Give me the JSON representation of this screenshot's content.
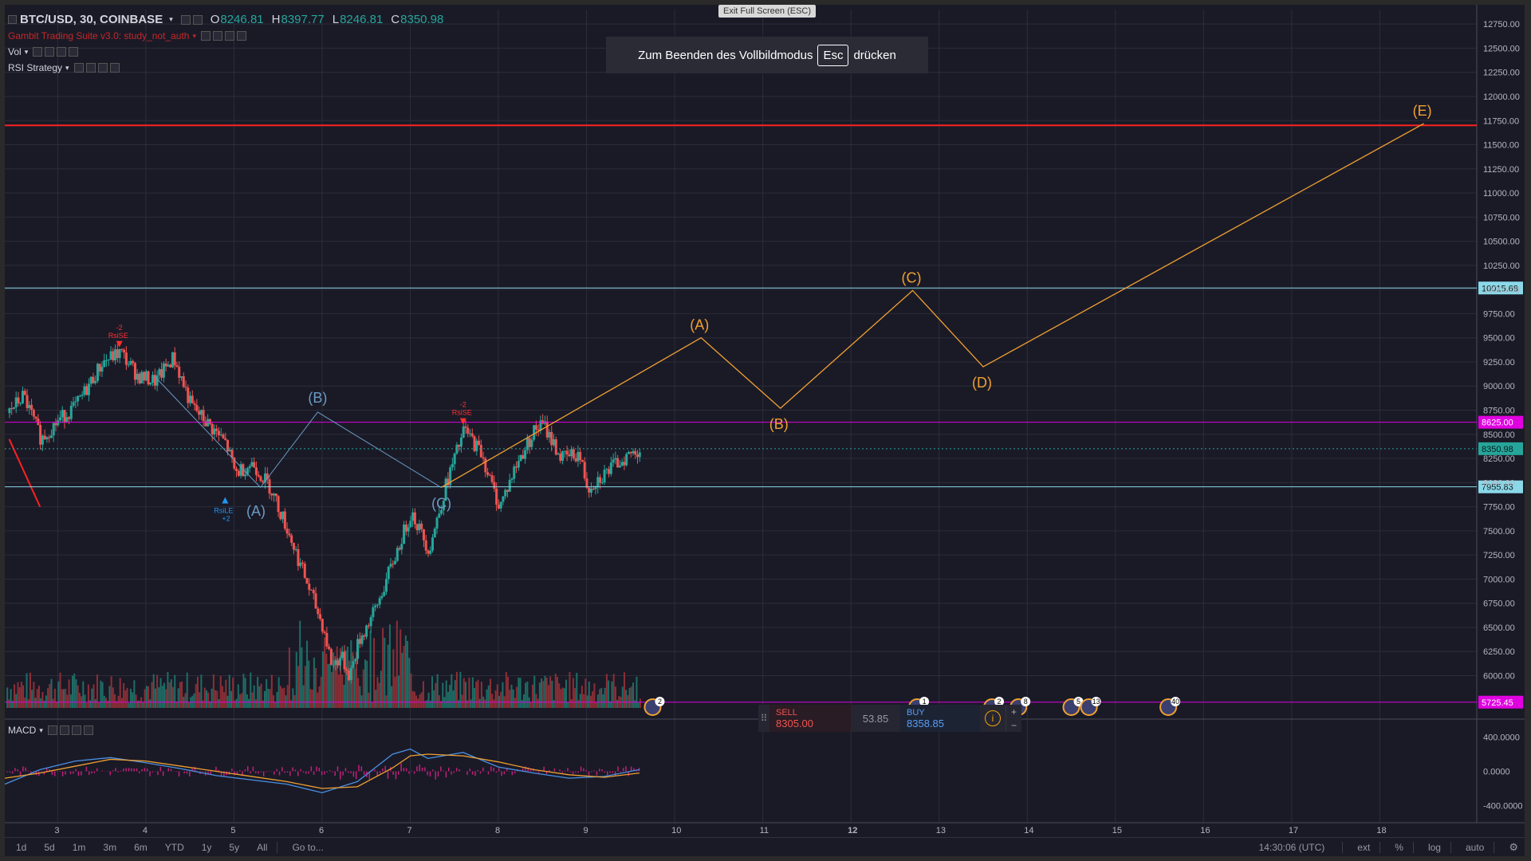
{
  "header": {
    "symbol": "BTC/USD, 30, COINBASE",
    "open_k": "O",
    "open": "8246.81",
    "high_k": "H",
    "high": "8397.77",
    "low_k": "L",
    "low": "8246.81",
    "close_k": "C",
    "close": "8350.98",
    "study1": "Gambit Trading Suite v3.0: study_not_auth",
    "study2": "Vol",
    "study3": "RSI Strategy"
  },
  "tooltip": "Exit Full Screen (ESC)",
  "fullscreen_banner": {
    "before": "Zum Beenden des Vollbildmodus",
    "key": "Esc",
    "after": "drücken"
  },
  "macd_label": "MACD",
  "trade_panel": {
    "sell_label": "SELL",
    "sell_price": "8305.00",
    "spread": "53.85",
    "buy_label": "BUY",
    "buy_price": "8358.85",
    "info": "i",
    "plus": "+",
    "minus": "−"
  },
  "bottom_bar": {
    "ranges": [
      "1d",
      "5d",
      "1m",
      "3m",
      "6m",
      "YTD",
      "1y",
      "5y",
      "All"
    ],
    "goto": "Go to...",
    "time": "14:30:06 (UTC)",
    "toggles": [
      "ext",
      "%",
      "log",
      "auto"
    ]
  },
  "colors": {
    "bg": "#1a1a27",
    "grid": "#2c2c3a",
    "up": "#26a69a",
    "down": "#ef5350",
    "wave_orange": "#f0a030",
    "wave_blue": "#6b9bc3",
    "red_line": "#ff2020",
    "magenta": "#e000e0",
    "cyan": "#8ad8e8"
  },
  "chart_data": [
    {
      "type": "candlestick",
      "title": "BTC/USD, 30, COINBASE",
      "x_ticks": [
        "3",
        "4",
        "5",
        "6",
        "7",
        "8",
        "9",
        "10",
        "11",
        "12",
        "13",
        "14",
        "15",
        "16",
        "17",
        "18"
      ],
      "y_ticks": [
        "12750.00",
        "12500.00",
        "12250.00",
        "12000.00",
        "11750.00",
        "11500.00",
        "11250.00",
        "11000.00",
        "10750.00",
        "10500.00",
        "10250.00",
        "10000.00",
        "9750.00",
        "9500.00",
        "9250.00",
        "9000.00",
        "8750.00",
        "8500.00",
        "8250.00",
        "8000.00",
        "7750.00",
        "7500.00",
        "7250.00",
        "7000.00",
        "6750.00",
        "6500.00",
        "6250.00",
        "6000.00"
      ],
      "ylim": [
        5550,
        12900
      ],
      "xlim": [
        2.4,
        19.1
      ],
      "price_path": [
        [
          2.4,
          8700
        ],
        [
          2.6,
          8900
        ],
        [
          2.8,
          8450
        ],
        [
          3.0,
          8650
        ],
        [
          3.2,
          8800
        ],
        [
          3.5,
          9250
        ],
        [
          3.7,
          9350
        ],
        [
          3.9,
          9100
        ],
        [
          4.1,
          9050
        ],
        [
          4.3,
          9300
        ],
        [
          4.5,
          8800
        ],
        [
          4.7,
          8600
        ],
        [
          4.9,
          8400
        ],
        [
          5.0,
          8100
        ],
        [
          5.2,
          8200
        ],
        [
          5.4,
          7950
        ],
        [
          5.6,
          7500
        ],
        [
          5.8,
          7000
        ],
        [
          6.0,
          6500
        ],
        [
          6.1,
          6100
        ],
        [
          6.2,
          6200
        ],
        [
          6.3,
          6000
        ],
        [
          6.4,
          6350
        ],
        [
          6.6,
          6700
        ],
        [
          6.8,
          7200
        ],
        [
          7.0,
          7700
        ],
        [
          7.2,
          7300
        ],
        [
          7.4,
          8000
        ],
        [
          7.6,
          8550
        ],
        [
          7.8,
          8300
        ],
        [
          7.9,
          8000
        ],
        [
          8.0,
          7750
        ],
        [
          8.2,
          8200
        ],
        [
          8.4,
          8550
        ],
        [
          8.5,
          8600
        ],
        [
          8.7,
          8250
        ],
        [
          8.9,
          8300
        ],
        [
          9.0,
          7950
        ],
        [
          9.2,
          8100
        ],
        [
          9.4,
          8250
        ],
        [
          9.6,
          8350
        ]
      ],
      "horizontal_levels": [
        {
          "value": 11700,
          "color": "red"
        },
        {
          "value": 10015.68,
          "label": "10015.68",
          "color": "cyan"
        },
        {
          "value": 8625.0,
          "label": "8625.00",
          "color": "magenta"
        },
        {
          "value": 8350.98,
          "label": "8350.98",
          "color": "green"
        },
        {
          "value": 7955.83,
          "label": "7955.83",
          "color": "cyan"
        },
        {
          "value": 5725.45,
          "label": "5725.45",
          "color": "magenta"
        }
      ],
      "wave_labels_blue": [
        {
          "label": "(A)",
          "x": 5.25,
          "y": 7870
        },
        {
          "label": "(B)",
          "x": 5.95,
          "y": 8730
        },
        {
          "label": "(C)",
          "x": 7.35,
          "y": 7950
        }
      ],
      "wave_path_blue": [
        [
          4.1,
          9100
        ],
        [
          5.3,
          7950
        ],
        [
          5.95,
          8730
        ],
        [
          7.35,
          7950
        ]
      ],
      "wave_labels_orange": [
        {
          "label": "(A)",
          "x": 10.3,
          "y": 9500
        },
        {
          "label": "(B)",
          "x": 11.2,
          "y": 8770
        },
        {
          "label": "(C)",
          "x": 12.7,
          "y": 9990
        },
        {
          "label": "(D)",
          "x": 13.5,
          "y": 9200
        },
        {
          "label": "(E)",
          "x": 18.5,
          "y": 11720
        }
      ],
      "wave_path_orange": [
        [
          7.35,
          7950
        ],
        [
          10.3,
          9500
        ],
        [
          11.2,
          8770
        ],
        [
          12.7,
          9990
        ],
        [
          13.5,
          9200
        ],
        [
          18.5,
          11720
        ]
      ],
      "signals": [
        {
          "label": "RsiSE",
          "sub": "-2",
          "x": 3.7,
          "y": 9400,
          "color": "red"
        },
        {
          "label": "RsiSE",
          "sub": "-2",
          "x": 7.6,
          "y": 8600,
          "color": "red"
        },
        {
          "label": "RsiLE",
          "sub": "+2",
          "x": 4.9,
          "y": 7850,
          "color": "blue"
        }
      ],
      "event_badges": [
        {
          "label": "2",
          "x": 9.75
        },
        {
          "label": "1",
          "x": 12.75
        },
        {
          "label": "2",
          "x": 13.6
        },
        {
          "label": "8",
          "x": 13.9
        },
        {
          "label": "5",
          "x": 14.5
        },
        {
          "label": "13",
          "x": 14.7
        },
        {
          "label": "40",
          "x": 15.6
        }
      ]
    },
    {
      "type": "line",
      "title": "MACD",
      "y_ticks": [
        "400.0000",
        "0.0000",
        "-400.0000"
      ],
      "ylim": [
        -600,
        600
      ],
      "x": [
        2.4,
        2.8,
        3.2,
        3.6,
        4.0,
        4.4,
        4.8,
        5.2,
        5.6,
        6.0,
        6.4,
        6.8,
        7.0,
        7.2,
        7.6,
        8.0,
        8.4,
        8.8,
        9.2,
        9.6
      ],
      "series": [
        {
          "color": "#4a90e2",
          "values": [
            -150,
            20,
            120,
            160,
            100,
            30,
            -50,
            -100,
            -150,
            -250,
            -120,
            200,
            260,
            150,
            220,
            50,
            -20,
            -80,
            -60,
            20
          ]
        },
        {
          "color": "#f0a030",
          "values": [
            -80,
            -20,
            60,
            140,
            120,
            60,
            0,
            -60,
            -120,
            -200,
            -180,
            40,
            180,
            200,
            180,
            110,
            20,
            -40,
            -70,
            -20
          ]
        }
      ]
    }
  ]
}
